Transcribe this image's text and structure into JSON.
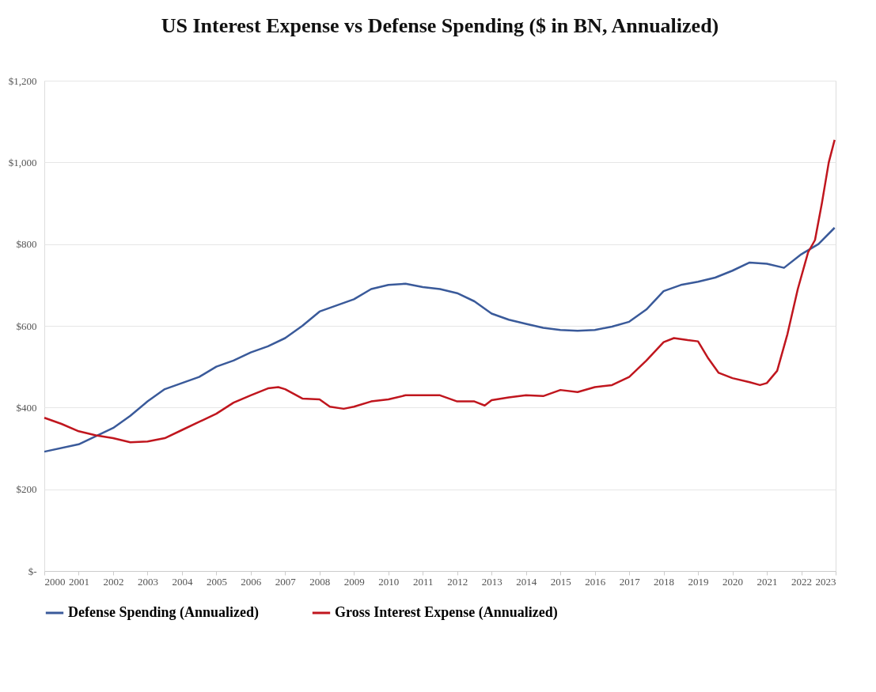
{
  "chart_data": {
    "type": "line",
    "title": "US Interest Expense vs Defense Spending ($ in BN, Annualized)",
    "xlim": [
      2000,
      2023
    ],
    "xticks": [
      2000,
      2001,
      2002,
      2003,
      2004,
      2005,
      2006,
      2007,
      2008,
      2009,
      2010,
      2011,
      2012,
      2013,
      2014,
      2015,
      2016,
      2017,
      2018,
      2019,
      2020,
      2021,
      2022,
      2023
    ],
    "ylim": [
      0,
      1200
    ],
    "yticks": [
      {
        "value": 0,
        "label": "$-"
      },
      {
        "value": 200,
        "label": "$200"
      },
      {
        "value": 400,
        "label": "$400"
      },
      {
        "value": 600,
        "label": "$600"
      },
      {
        "value": 800,
        "label": "$800"
      },
      {
        "value": 1000,
        "label": "$1,000"
      },
      {
        "value": 1200,
        "label": "$1,200"
      }
    ],
    "grid": "y",
    "legend": "bottom",
    "marker": "none",
    "line_style": "solid",
    "series": [
      {
        "name": "Defense Spending (Annualized)",
        "color": "#3a5a9a",
        "x": [
          2000,
          2001,
          2002,
          2002.5,
          2003,
          2003.5,
          2004,
          2004.5,
          2005,
          2005.5,
          2006,
          2006.5,
          2007,
          2007.5,
          2008,
          2008.5,
          2009,
          2009.5,
          2010,
          2010.5,
          2011,
          2011.5,
          2012,
          2012.5,
          2013,
          2013.5,
          2014,
          2014.5,
          2015,
          2015.5,
          2016,
          2016.5,
          2017,
          2017.5,
          2018,
          2018.5,
          2019,
          2019.5,
          2020,
          2020.5,
          2021,
          2021.5,
          2022,
          2022.5,
          2022.97
        ],
        "values": [
          292,
          310,
          350,
          380,
          415,
          445,
          460,
          475,
          500,
          515,
          535,
          550,
          570,
          600,
          635,
          650,
          665,
          690,
          700,
          703,
          695,
          690,
          680,
          660,
          630,
          615,
          605,
          595,
          590,
          588,
          590,
          598,
          610,
          640,
          685,
          700,
          708,
          718,
          735,
          755,
          752,
          742,
          775,
          800,
          840
        ]
      },
      {
        "name": "Gross Interest Expense (Annualized)",
        "color": "#c0161e",
        "x": [
          2000,
          2000.5,
          2001,
          2001.5,
          2002,
          2002.5,
          2003,
          2003.5,
          2004,
          2004.5,
          2005,
          2005.5,
          2006,
          2006.5,
          2006.8,
          2007,
          2007.5,
          2008,
          2008.3,
          2008.7,
          2009,
          2009.5,
          2010,
          2010.5,
          2011,
          2011.5,
          2012,
          2012.5,
          2012.8,
          2013,
          2013.5,
          2014,
          2014.5,
          2015,
          2015.5,
          2016,
          2016.5,
          2017,
          2017.5,
          2018,
          2018.3,
          2018.7,
          2019,
          2019.3,
          2019.6,
          2020,
          2020.5,
          2020.8,
          2021,
          2021.3,
          2021.6,
          2021.9,
          2022.2,
          2022.4,
          2022.6,
          2022.8,
          2022.97
        ],
        "values": [
          375,
          360,
          342,
          332,
          325,
          315,
          317,
          325,
          345,
          365,
          385,
          412,
          430,
          447,
          450,
          445,
          422,
          420,
          402,
          397,
          402,
          415,
          420,
          430,
          430,
          430,
          415,
          415,
          405,
          418,
          425,
          430,
          428,
          443,
          438,
          450,
          455,
          475,
          515,
          560,
          570,
          565,
          562,
          520,
          485,
          472,
          462,
          455,
          460,
          490,
          580,
          690,
          780,
          810,
          900,
          1000,
          1055
        ]
      }
    ]
  }
}
